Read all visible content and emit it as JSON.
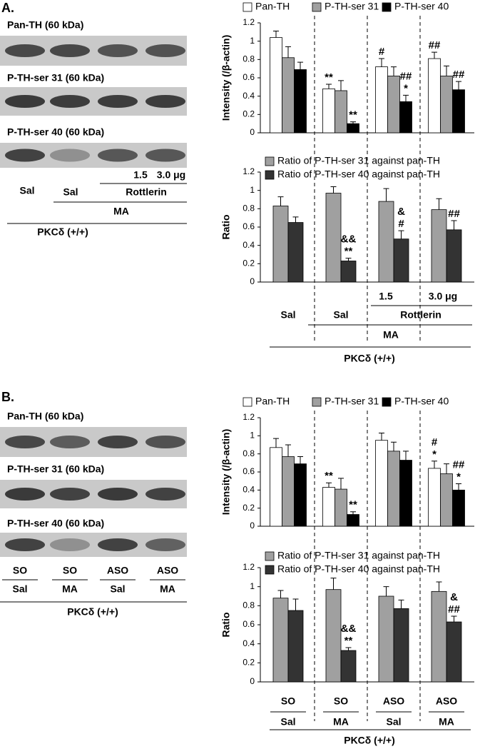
{
  "panels": [
    {
      "label": "A.",
      "blot_labels": [
        "Pan-TH (60 kDa)",
        "P-TH-ser 31 (60 kDa)",
        "P-TH-ser 40 (60 kDa)"
      ],
      "conditions": {
        "dose_low": "1.5",
        "dose_high": "3.0 μg",
        "vehicle_control": "Sal",
        "vehicle_ma": "Sal",
        "inhibitor": "Rottlerin",
        "treatment": "MA",
        "genotype": "PKCδ (+/+)"
      }
    },
    {
      "label": "B.",
      "blot_labels": [
        "Pan-TH (60 kDa)",
        "P-TH-ser 31 (60 kDa)",
        "P-TH-ser 40 (60 kDa)"
      ],
      "conditions": {
        "oligo": [
          "SO",
          "SO",
          "ASO",
          "ASO"
        ],
        "treatment": [
          "Sal",
          "MA",
          "Sal",
          "MA"
        ],
        "genotype": "PKCδ (+/+)"
      }
    }
  ],
  "chart_data": [
    {
      "type": "bar",
      "y_label": "Intensity (/β-actin)",
      "categories": [
        null,
        null,
        null,
        null
      ],
      "series": [
        {
          "name": "Pan-TH",
          "color": "#ffffff",
          "values": [
            1.04,
            0.48,
            0.72,
            0.81
          ],
          "errors": [
            0.07,
            0.05,
            0.09,
            0.07
          ],
          "annotations": [
            null,
            [
              "**"
            ],
            [
              "#"
            ],
            [
              "##"
            ]
          ]
        },
        {
          "name": "P-TH-ser 31",
          "color": "#a0a0a0",
          "values": [
            0.82,
            0.46,
            0.62,
            0.62
          ],
          "errors": [
            0.12,
            0.11,
            0.1,
            0.11
          ],
          "annotations": [
            null,
            null,
            null,
            null
          ]
        },
        {
          "name": "P-TH-ser 40",
          "color": "#000000",
          "values": [
            0.69,
            0.1,
            0.34,
            0.47
          ],
          "errors": [
            0.08,
            0.02,
            0.07,
            0.09
          ],
          "annotations": [
            null,
            [
              "**"
            ],
            [
              "##",
              "*"
            ],
            [
              "##"
            ]
          ]
        }
      ],
      "ylim": [
        0,
        1.2
      ],
      "yticks": [
        0,
        0.2,
        0.4,
        0.6,
        0.8,
        1,
        1.2
      ]
    },
    {
      "type": "bar",
      "y_label": "Ratio",
      "categories": [
        null,
        null,
        null,
        null
      ],
      "series": [
        {
          "name": "Ratio of P-TH-ser 31 against pan-TH",
          "color": "#a0a0a0",
          "values": [
            0.83,
            0.97,
            0.88,
            0.79
          ],
          "errors": [
            0.1,
            0.07,
            0.14,
            0.12
          ],
          "annotations": [
            null,
            null,
            null,
            null
          ]
        },
        {
          "name": "Ratio of P-TH-ser 40 against pan-TH",
          "color": "#333333",
          "values": [
            0.65,
            0.23,
            0.47,
            0.57
          ],
          "errors": [
            0.06,
            0.03,
            0.09,
            0.1
          ],
          "annotations": [
            null,
            [
              "&&",
              "**"
            ],
            [
              "&",
              "#"
            ],
            [
              "##"
            ]
          ]
        }
      ],
      "ylim": [
        0,
        1.2
      ],
      "yticks": [
        0,
        0.2,
        0.4,
        0.6,
        0.8,
        1,
        1.2
      ],
      "group_labels": {
        "dose_low": "1.5",
        "dose_high": "3.0 μg",
        "vehicle_control": "Sal",
        "vehicle_ma": "Sal",
        "inhibitor": "Rottlerin",
        "treatment": "MA",
        "genotype": "PKCδ (+/+)"
      }
    },
    {
      "type": "bar",
      "y_label": "Intensity (/β-actin)",
      "categories": [
        null,
        null,
        null,
        null
      ],
      "series": [
        {
          "name": "Pan-TH",
          "color": "#ffffff",
          "values": [
            0.87,
            0.43,
            0.95,
            0.64
          ],
          "errors": [
            0.1,
            0.05,
            0.08,
            0.08
          ],
          "annotations": [
            null,
            [
              "**"
            ],
            null,
            [
              "#",
              "*"
            ]
          ]
        },
        {
          "name": "P-TH-ser 31",
          "color": "#a0a0a0",
          "values": [
            0.77,
            0.41,
            0.83,
            0.58
          ],
          "errors": [
            0.13,
            0.12,
            0.1,
            0.11
          ],
          "annotations": [
            null,
            null,
            null,
            null
          ]
        },
        {
          "name": "P-TH-ser 40",
          "color": "#000000",
          "values": [
            0.69,
            0.13,
            0.73,
            0.4
          ],
          "errors": [
            0.08,
            0.03,
            0.1,
            0.07
          ],
          "annotations": [
            null,
            [
              "**"
            ],
            null,
            [
              "##",
              "*"
            ]
          ]
        }
      ],
      "ylim": [
        0,
        1.2
      ],
      "yticks": [
        0,
        0.2,
        0.4,
        0.6,
        0.8,
        1,
        1.2
      ]
    },
    {
      "type": "bar",
      "y_label": "Ratio",
      "categories": [
        null,
        null,
        null,
        null
      ],
      "series": [
        {
          "name": "Ratio of P-TH-ser 31 against pan-TH",
          "color": "#a0a0a0",
          "values": [
            0.88,
            0.97,
            0.9,
            0.95
          ],
          "errors": [
            0.08,
            0.12,
            0.1,
            0.1
          ],
          "annotations": [
            null,
            null,
            null,
            null
          ]
        },
        {
          "name": "Ratio of P-TH-ser 40 against pan-TH",
          "color": "#333333",
          "values": [
            0.75,
            0.33,
            0.77,
            0.63
          ],
          "errors": [
            0.12,
            0.03,
            0.09,
            0.06
          ],
          "annotations": [
            null,
            [
              "&&",
              "**"
            ],
            null,
            [
              "&",
              "##"
            ]
          ]
        }
      ],
      "ylim": [
        0,
        1.2
      ],
      "yticks": [
        0,
        0.2,
        0.4,
        0.6,
        0.8,
        1,
        1.2
      ],
      "group_labels": {
        "oligo": [
          "SO",
          "SO",
          "ASO",
          "ASO"
        ],
        "treatment": [
          "Sal",
          "MA",
          "Sal",
          "MA"
        ],
        "genotype": "PKCδ (+/+)"
      }
    }
  ]
}
